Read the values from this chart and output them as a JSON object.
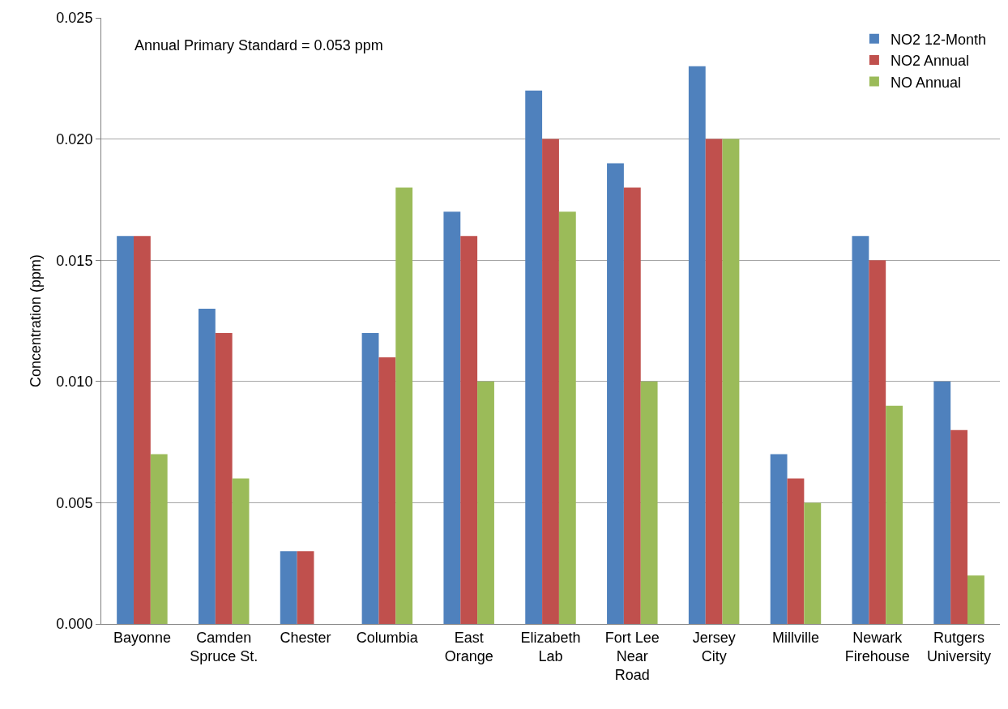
{
  "chart_data": {
    "type": "bar",
    "ylabel": "Concentration (ppm)",
    "annotations": [
      "Annual Primary Standard = 0.053 ppm"
    ],
    "categories": [
      "Bayonne",
      "Camden\nSpruce St.",
      "Chester",
      "Columbia",
      "East\nOrange",
      "Elizabeth\nLab",
      "Fort Lee\nNear\nRoad",
      "Jersey\nCity",
      "Millville",
      "Newark\nFirehouse",
      "Rutgers\nUniversity"
    ],
    "series": [
      {
        "name": "NO2 12-Month",
        "color": "#4f81bd",
        "values": [
          0.016,
          0.013,
          0.003,
          0.012,
          0.017,
          0.022,
          0.019,
          0.023,
          0.007,
          0.016,
          0.01
        ]
      },
      {
        "name": "NO2 Annual",
        "color": "#c0504d",
        "values": [
          0.016,
          0.012,
          0.003,
          0.011,
          0.016,
          0.02,
          0.018,
          0.02,
          0.006,
          0.015,
          0.008
        ]
      },
      {
        "name": "NO Annual",
        "color": "#9bbb59",
        "values": [
          0.007,
          0.006,
          null,
          0.018,
          0.01,
          0.017,
          0.01,
          0.02,
          0.005,
          0.009,
          0.002
        ]
      }
    ],
    "ylim": [
      0,
      0.025
    ],
    "yticks": [
      {
        "value": 0,
        "label": "0.000"
      },
      {
        "value": 0.005,
        "label": "0.005"
      },
      {
        "value": 0.01,
        "label": "0.010"
      },
      {
        "value": 0.015,
        "label": "0.015"
      },
      {
        "value": 0.02,
        "label": "0.020"
      },
      {
        "value": 0.025,
        "label": "0.025"
      }
    ],
    "grid": "y",
    "legend": "top right"
  }
}
